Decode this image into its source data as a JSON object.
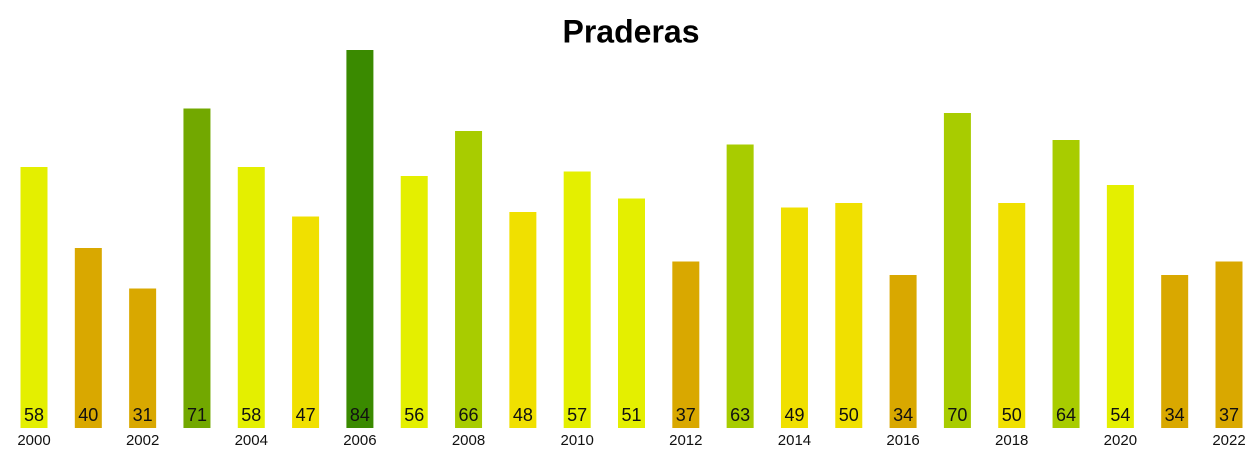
{
  "chart_data": {
    "type": "bar",
    "title": "Praderas",
    "categories": [
      "2000",
      null,
      "2002",
      null,
      "2004",
      null,
      "2006",
      null,
      "2008",
      null,
      "2010",
      null,
      "2012",
      null,
      "2014",
      null,
      "2016",
      null,
      "2018",
      null,
      "2020",
      null,
      "2022"
    ],
    "values": [
      58,
      40,
      31,
      71,
      58,
      47,
      84,
      56,
      66,
      48,
      57,
      51,
      37,
      63,
      49,
      50,
      34,
      70,
      50,
      64,
      54,
      34,
      37
    ],
    "colors": [
      "#e4ef00",
      "#d9a800",
      "#d9a800",
      "#72a800",
      "#e4ef00",
      "#f0e000",
      "#3a8a00",
      "#e4ef00",
      "#a8cc00",
      "#f0e000",
      "#e4ef00",
      "#e4ef00",
      "#d9a800",
      "#a8cc00",
      "#f0e000",
      "#f0e000",
      "#d9a800",
      "#a8cc00",
      "#f0e000",
      "#a8cc00",
      "#e4ef00",
      "#d9a800",
      "#d9a800"
    ]
  }
}
